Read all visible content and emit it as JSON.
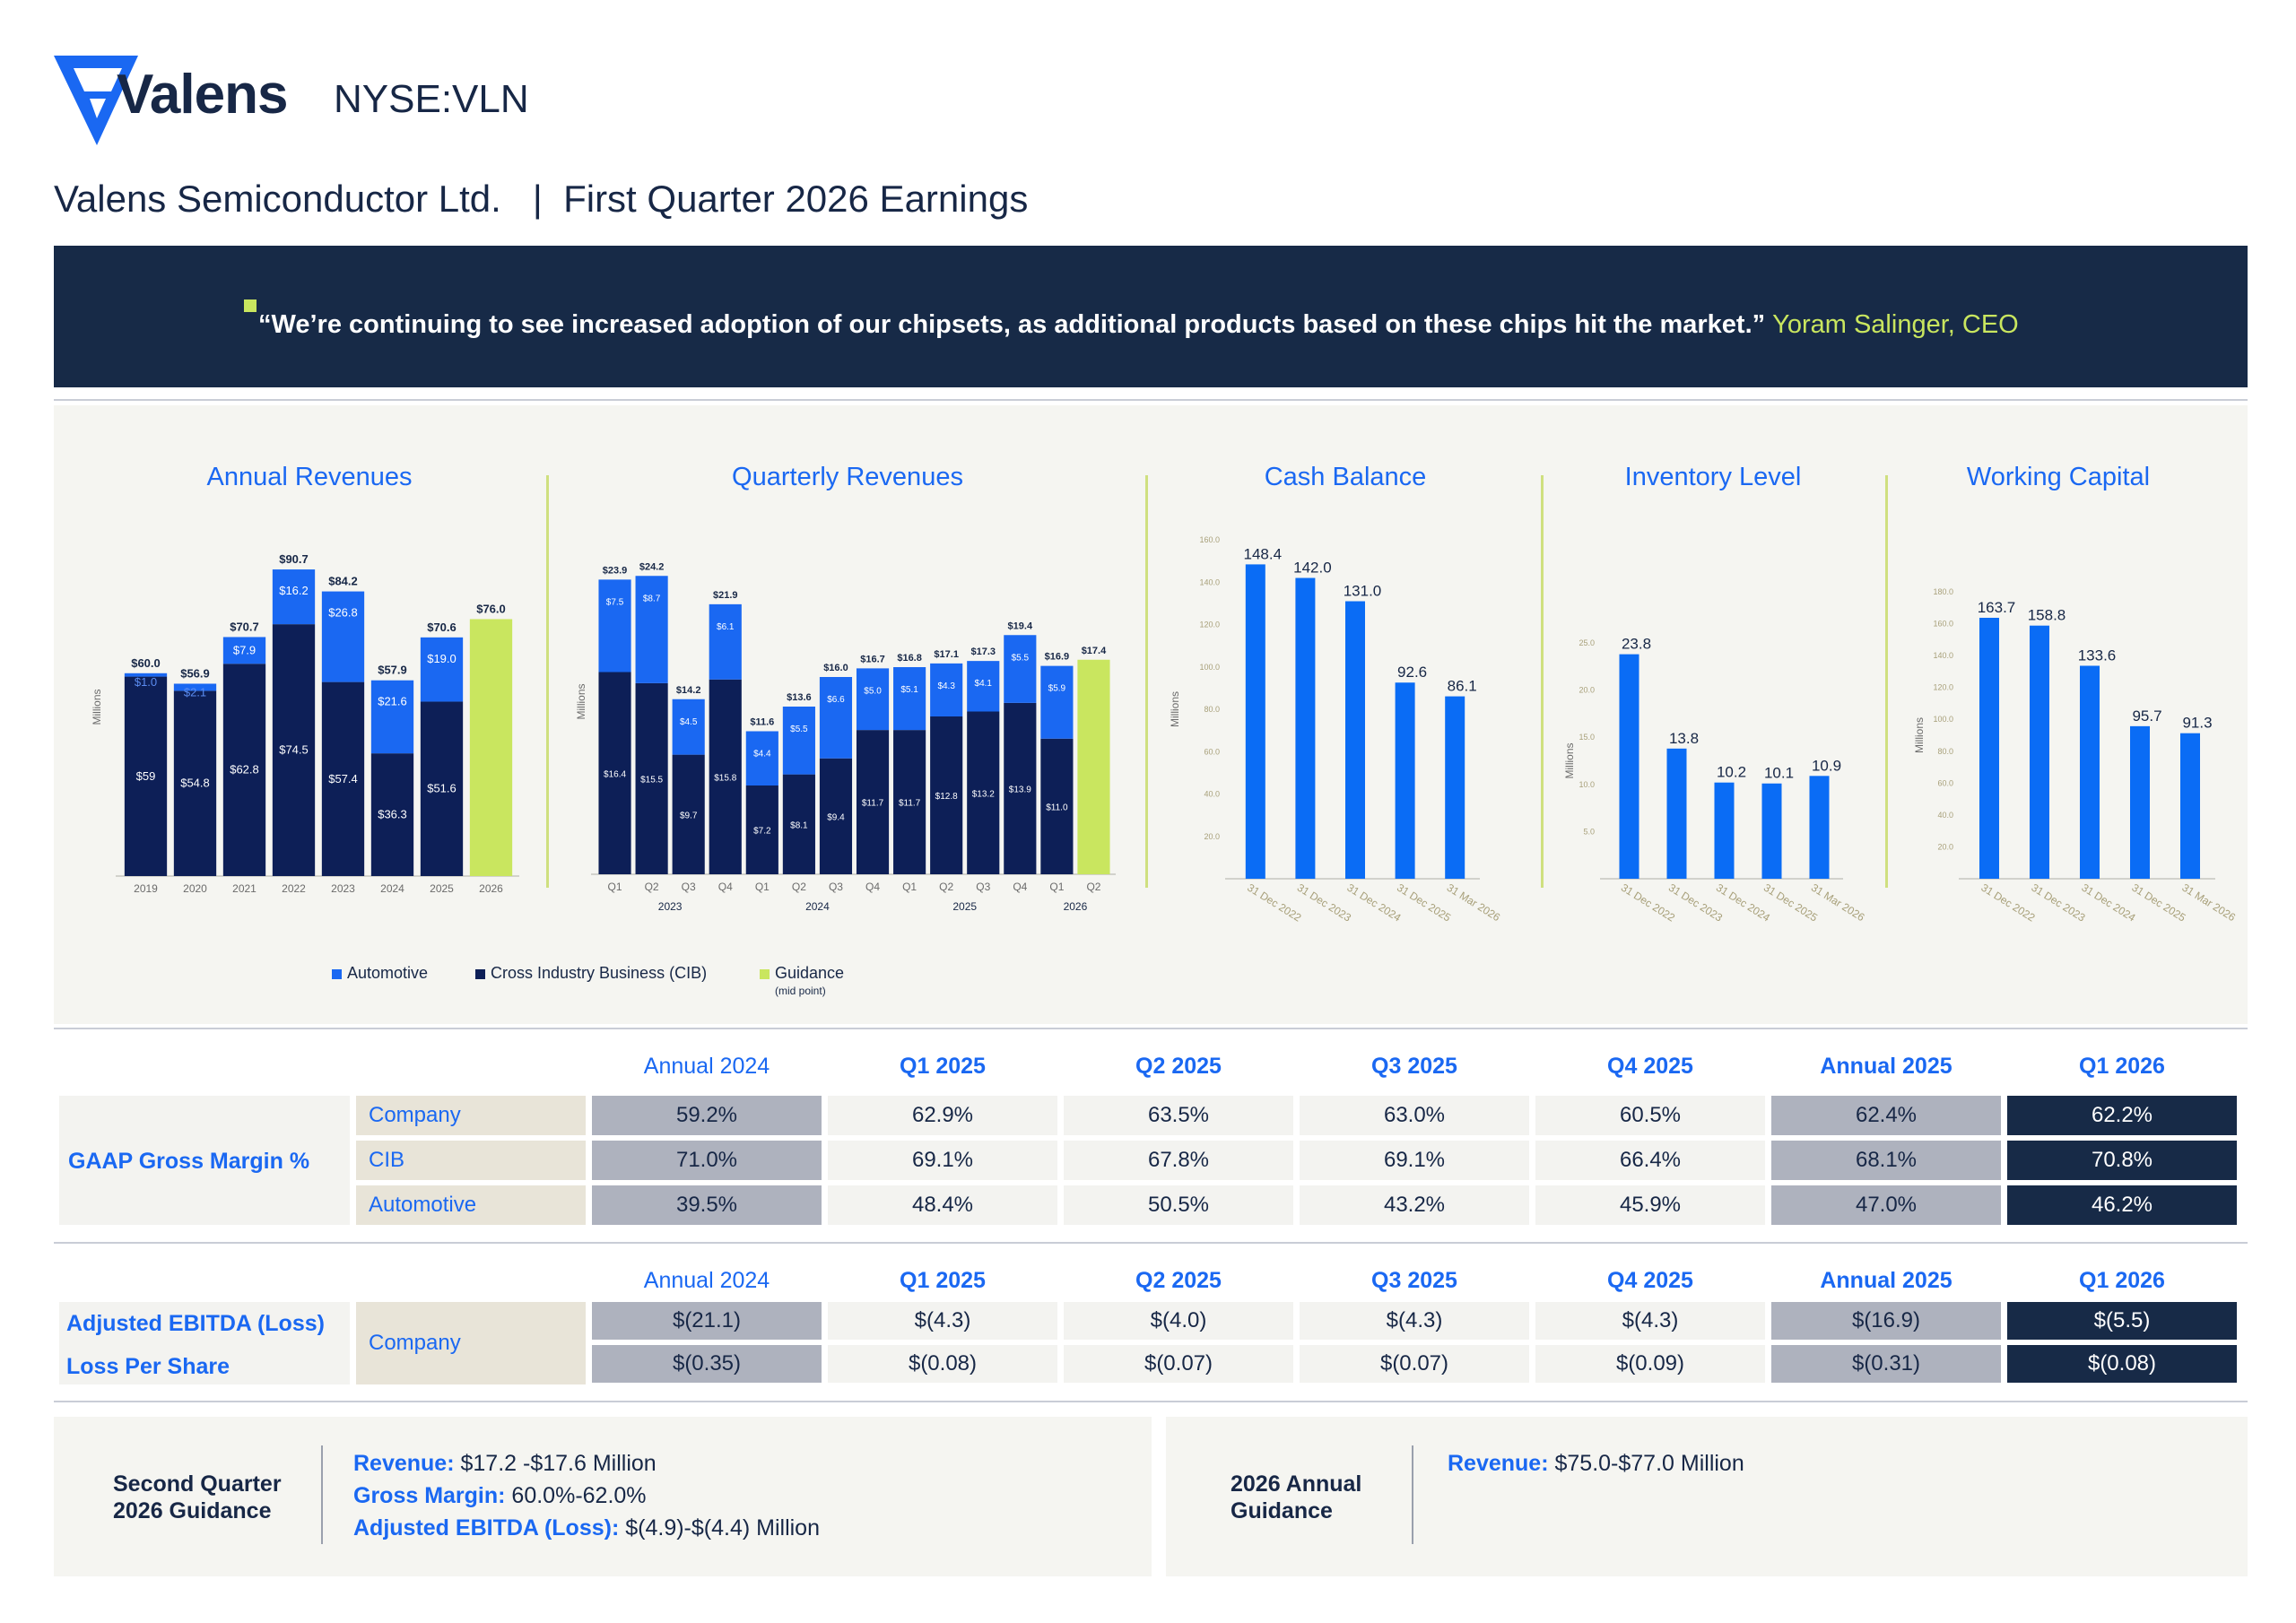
{
  "header": {
    "brand": "Valens",
    "ticker": "NYSE:VLN",
    "title": "Valens Semiconductor Ltd.   |  First Quarter 2026 Earnings"
  },
  "quote": {
    "text": "“We’re continuing to see increased adoption of our chipsets, as additional products based on these chips hit the market.”",
    "author": "Yoram Salinger, CEO"
  },
  "colors": {
    "navy": "#172a47",
    "automotive_blue": "#1a68f2",
    "cib_navy": "#0d1f57",
    "guidance_lime": "#c9e65f",
    "bar_blue": "#0a6cf5"
  },
  "chart_titles": {
    "annual": "Annual Revenues",
    "quarterly": "Quarterly Revenues",
    "cash": "Cash Balance",
    "inventory": "Inventory Level",
    "working": "Working Capital"
  },
  "legend": {
    "automotive": "Automotive",
    "cib": "Cross Industry Business (CIB)",
    "guidance": "Guidance",
    "guidance_note": "(mid point)"
  },
  "chart_data": [
    {
      "type": "bar",
      "title": "Annual Revenues",
      "ylabel": "Millions",
      "stacked": true,
      "categories": [
        "2019",
        "2020",
        "2021",
        "2022",
        "2023",
        "2024",
        "2025",
        "2026"
      ],
      "series": [
        {
          "name": "Cross Industry Business (CIB)",
          "values": [
            59,
            54.8,
            62.8,
            74.5,
            57.4,
            36.3,
            51.6,
            null
          ],
          "labels": [
            "$59",
            "$54.8",
            "$62.8",
            "$74.5",
            "$57.4",
            "$36.3",
            "$51.6",
            ""
          ]
        },
        {
          "name": "Automotive",
          "values": [
            1.0,
            2.1,
            7.9,
            16.2,
            26.8,
            21.6,
            19.0,
            null
          ],
          "labels": [
            "$1.0",
            "$2.1",
            "$7.9",
            "$16.2",
            "$26.8",
            "$21.6",
            "$19.0",
            ""
          ]
        },
        {
          "name": "Guidance",
          "values": [
            null,
            null,
            null,
            null,
            null,
            null,
            null,
            76.0
          ]
        }
      ],
      "totals": [
        "$60.0",
        "$56.9",
        "$70.7",
        "$90.7",
        "$84.2",
        "$57.9",
        "$70.6",
        "$76.0"
      ],
      "ylim": [
        0,
        100
      ]
    },
    {
      "type": "bar",
      "title": "Quarterly Revenues",
      "ylabel": "Millions",
      "stacked": true,
      "categories": [
        "Q1",
        "Q2",
        "Q3",
        "Q4",
        "Q1",
        "Q2",
        "Q3",
        "Q4",
        "Q1",
        "Q2",
        "Q3",
        "Q4",
        "Q1",
        "Q2"
      ],
      "groups": [
        "2023",
        "2024",
        "2025",
        "2026"
      ],
      "series": [
        {
          "name": "Cross Industry Business (CIB)",
          "values": [
            16.4,
            15.5,
            9.7,
            15.8,
            7.2,
            8.1,
            9.4,
            11.7,
            11.7,
            12.8,
            13.2,
            13.9,
            11.0,
            null
          ],
          "labels": [
            "$16.4",
            "$15.5",
            "$9.7",
            "$15.8",
            "$7.2",
            "$8.1",
            "$9.4",
            "$11.7",
            "$11.7",
            "$12.8",
            "$13.2",
            "$13.9",
            "$11.0",
            ""
          ]
        },
        {
          "name": "Automotive",
          "values": [
            7.5,
            8.7,
            4.5,
            6.1,
            4.4,
            5.5,
            6.6,
            5.0,
            5.1,
            4.3,
            4.1,
            5.5,
            5.9,
            null
          ],
          "labels": [
            "$7.5",
            "$8.7",
            "$4.5",
            "$6.1",
            "$4.4",
            "$5.5",
            "$6.6",
            "$5.0",
            "$5.1",
            "$4.3",
            "$4.1",
            "$5.5",
            "$5.9",
            ""
          ]
        },
        {
          "name": "Guidance",
          "values": [
            null,
            null,
            null,
            null,
            null,
            null,
            null,
            null,
            null,
            null,
            null,
            null,
            null,
            17.4
          ]
        }
      ],
      "totals": [
        "$23.9",
        "$24.2",
        "$14.2",
        "$21.9",
        "$11.6",
        "$13.6",
        "$16.0",
        "$16.7",
        "$16.8",
        "$17.1",
        "$17.3",
        "$19.4",
        "$16.9",
        "$17.4"
      ],
      "ylim": [
        0,
        28
      ]
    },
    {
      "type": "bar",
      "title": "Cash Balance",
      "ylabel": "Millions",
      "categories": [
        "31 Dec 2022",
        "31 Dec 2023",
        "31 Dec 2024",
        "31 Dec 2025",
        "31 Mar 2026"
      ],
      "values": [
        148.4,
        142.0,
        131.0,
        92.6,
        86.1
      ],
      "labels": [
        "148.4",
        "142.0",
        "131.0",
        "92.6",
        "86.1"
      ],
      "ylim": [
        0,
        160
      ],
      "yticks": [
        "20.0",
        "40.0",
        "60.0",
        "80.0",
        "100.0",
        "120.0",
        "140.0",
        "160.0"
      ]
    },
    {
      "type": "bar",
      "title": "Inventory Level",
      "ylabel": "Millions",
      "categories": [
        "31 Dec 2022",
        "31 Dec 2023",
        "31 Dec 2024",
        "31 Dec 2025",
        "31 Mar 2026"
      ],
      "values": [
        23.8,
        13.8,
        10.2,
        10.1,
        10.9
      ],
      "labels": [
        "23.8",
        "13.8",
        "10.2",
        "10.1",
        "10.9"
      ],
      "ylim": [
        0,
        25
      ],
      "yticks": [
        "5.0",
        "10.0",
        "15.0",
        "20.0",
        "25.0"
      ]
    },
    {
      "type": "bar",
      "title": "Working Capital",
      "ylabel": "Millions",
      "categories": [
        "31 Dec 2022",
        "31 Dec 2023",
        "31 Dec 2024",
        "31 Dec 2025",
        "31 Mar 2026"
      ],
      "values": [
        163.7,
        158.8,
        133.6,
        95.7,
        91.3
      ],
      "labels": [
        "163.7",
        "158.8",
        "133.6",
        "95.7",
        "91.3"
      ],
      "ylim": [
        0,
        180
      ],
      "yticks": [
        "20.0",
        "40.0",
        "60.0",
        "80.0",
        "100.0",
        "120.0",
        "140.0",
        "160.0",
        "180.0"
      ]
    }
  ],
  "margin_table": {
    "headers": [
      "Annual 2024",
      "Q1 2025",
      "Q2 2025",
      "Q3 2025",
      "Q4 2025",
      "Annual 2025",
      "Q1 2026"
    ],
    "row_label": "GAAP Gross Margin %",
    "rows": [
      {
        "label": "Company",
        "values": [
          "59.2%",
          "62.9%",
          "63.5%",
          "63.0%",
          "60.5%",
          "62.4%",
          "62.2%"
        ]
      },
      {
        "label": "CIB",
        "values": [
          "71.0%",
          "69.1%",
          "67.8%",
          "69.1%",
          "66.4%",
          "68.1%",
          "70.8%"
        ]
      },
      {
        "label": "Automotive",
        "values": [
          "39.5%",
          "48.4%",
          "50.5%",
          "43.2%",
          "45.9%",
          "47.0%",
          "46.2%"
        ]
      }
    ]
  },
  "ebitda_table": {
    "headers": [
      "Annual 2024",
      "Q1 2025",
      "Q2 2025",
      "Q3 2025",
      "Q4 2025",
      "Annual 2025",
      "Q1 2026"
    ],
    "sub_label": "Company",
    "rows": [
      {
        "label": "Adjusted EBITDA (Loss)",
        "values": [
          "$(21.1)",
          "$(4.3)",
          "$(4.0)",
          "$(4.3)",
          "$(4.3)",
          "$(16.9)",
          "$(5.5)"
        ]
      },
      {
        "label": "Loss Per Share",
        "values": [
          "$(0.35)",
          "$(0.08)",
          "$(0.07)",
          "$(0.07)",
          "$(0.09)",
          "$(0.31)",
          "$(0.08)"
        ]
      }
    ]
  },
  "guidance": {
    "q2": {
      "heading_1": "Second Quarter",
      "heading_2": "2026 Guidance",
      "lines": [
        {
          "key": "Revenue:",
          "value": " $17.2 -$17.6 Million"
        },
        {
          "key": "Gross Margin:",
          "value": " 60.0%-62.0%"
        },
        {
          "key": "Adjusted EBITDA (Loss):",
          "value": " $(4.9)-$(4.4) Million"
        }
      ]
    },
    "annual": {
      "heading_1": "2026 Annual",
      "heading_2": "Guidance",
      "lines": [
        {
          "key": "Revenue:",
          "value": " $75.0-$77.0 Million"
        }
      ]
    }
  }
}
